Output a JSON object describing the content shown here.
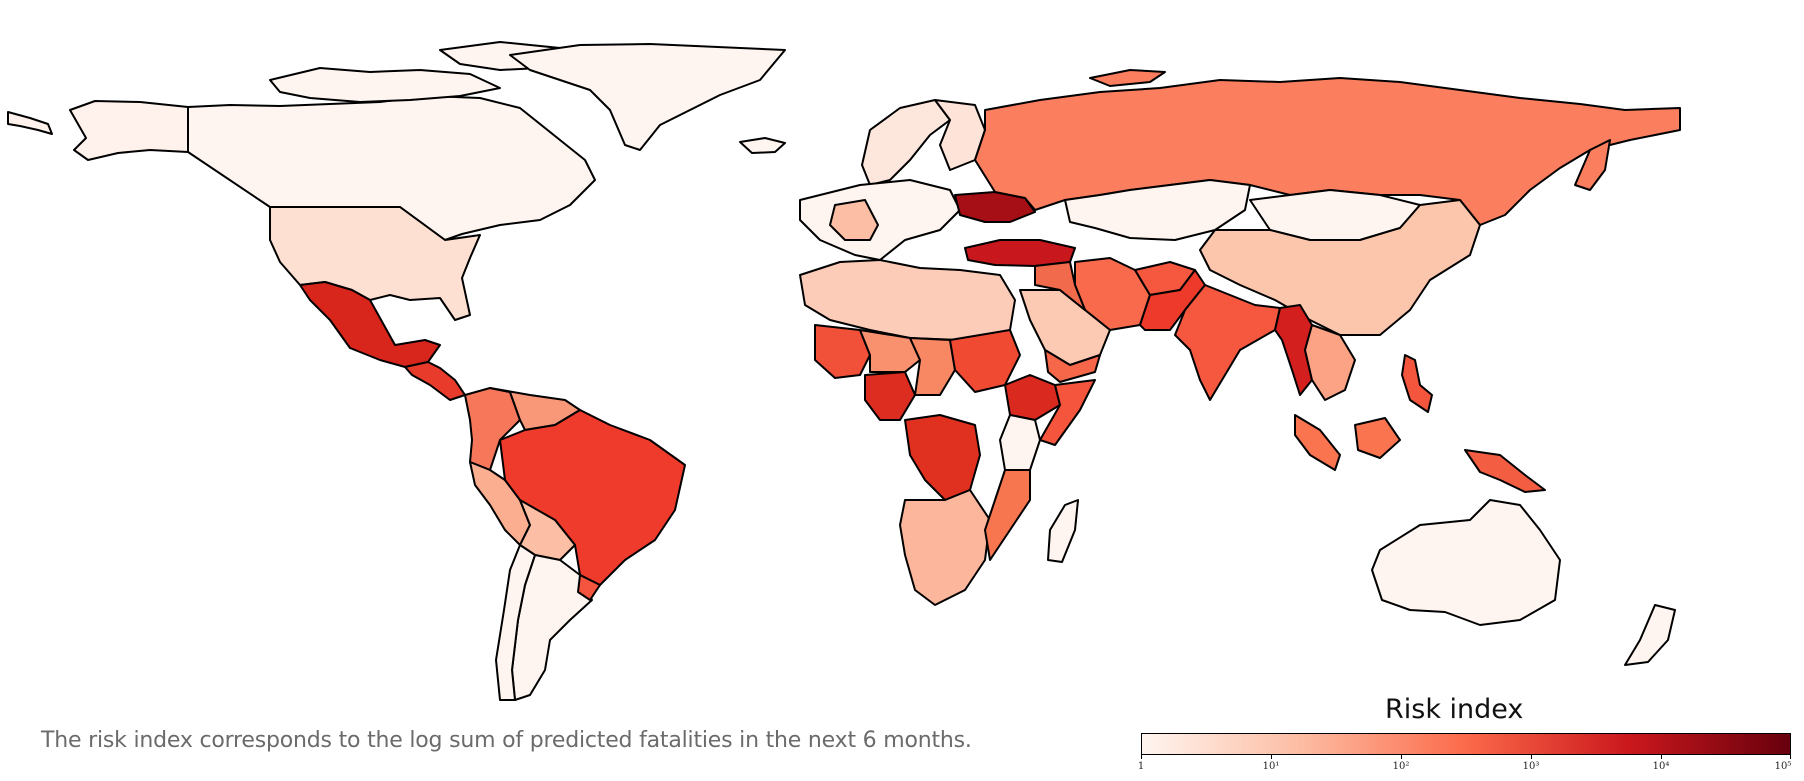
{
  "caption": "The risk index corresponds to the log sum of predicted fatalities in the next 6 months.",
  "legend": {
    "title": "Risk index",
    "ticks": [
      "1",
      "10¹",
      "10²",
      "10³",
      "10⁴",
      "10⁵"
    ],
    "scale": "log",
    "colors": [
      "#fff5f0",
      "#fcbba1",
      "#fb6a4a",
      "#cb181d",
      "#67000d"
    ]
  },
  "countries": [
    {
      "name": "Alaska",
      "color": "#fff1eb"
    },
    {
      "name": "Canada",
      "color": "#fff5f0"
    },
    {
      "name": "Greenland",
      "color": "#fff5f0"
    },
    {
      "name": "United States",
      "color": "#fde0d2"
    },
    {
      "name": "Mexico",
      "color": "#d9261c"
    },
    {
      "name": "Central America",
      "color": "#e83b2b"
    },
    {
      "name": "Colombia",
      "color": "#f7775a"
    },
    {
      "name": "Venezuela",
      "color": "#f99878"
    },
    {
      "name": "Peru",
      "color": "#fcae91"
    },
    {
      "name": "Brazil",
      "color": "#ef3b2c"
    },
    {
      "name": "Bolivia",
      "color": "#fcbea5"
    },
    {
      "name": "Argentina",
      "color": "#fff5f0"
    },
    {
      "name": "Chile",
      "color": "#fff5f0"
    },
    {
      "name": "Uruguay",
      "color": "#f5553e"
    },
    {
      "name": "Iceland",
      "color": "#fff5f0"
    },
    {
      "name": "Scandinavia",
      "color": "#fde6dc"
    },
    {
      "name": "Finland",
      "color": "#fde3d8"
    },
    {
      "name": "Western Europe",
      "color": "#fff5f0"
    },
    {
      "name": "France",
      "color": "#fcbfa6"
    },
    {
      "name": "Ukraine",
      "color": "#a50f15"
    },
    {
      "name": "Turkey",
      "color": "#c9181d"
    },
    {
      "name": "Russia",
      "color": "#fb7e5e"
    },
    {
      "name": "Kazakhstan",
      "color": "#fff5f0"
    },
    {
      "name": "Mongolia",
      "color": "#fff5f0"
    },
    {
      "name": "China",
      "color": "#fcc6ad"
    },
    {
      "name": "Iran",
      "color": "#f96a4c"
    },
    {
      "name": "Afghanistan",
      "color": "#f6583f"
    },
    {
      "name": "Pakistan",
      "color": "#ee3a2b"
    },
    {
      "name": "India",
      "color": "#f5583e"
    },
    {
      "name": "Myanmar",
      "color": "#d3201f"
    },
    {
      "name": "Southeast Asia",
      "color": "#fca285"
    },
    {
      "name": "Indonesia",
      "color": "#f9744f"
    },
    {
      "name": "Philippines",
      "color": "#f4563d"
    },
    {
      "name": "Papua New Guinea",
      "color": "#f35d42"
    },
    {
      "name": "Saudi Arabia",
      "color": "#fcc9b3"
    },
    {
      "name": "Yemen",
      "color": "#f6674a"
    },
    {
      "name": "Iraq/Syria",
      "color": "#f06a4b"
    },
    {
      "name": "North Africa",
      "color": "#fdccb8"
    },
    {
      "name": "Mali",
      "color": "#f25139"
    },
    {
      "name": "Niger",
      "color": "#f9916f"
    },
    {
      "name": "Nigeria",
      "color": "#dd2c20"
    },
    {
      "name": "Chad",
      "color": "#f88764"
    },
    {
      "name": "Sudan",
      "color": "#f04a33"
    },
    {
      "name": "Ethiopia",
      "color": "#da2a1f"
    },
    {
      "name": "Somalia",
      "color": "#f4553c"
    },
    {
      "name": "DR Congo",
      "color": "#e0301f"
    },
    {
      "name": "Kenya",
      "color": "#fff5f0"
    },
    {
      "name": "Southern Africa",
      "color": "#fcb69c"
    },
    {
      "name": "Mozambique",
      "color": "#f7754f"
    },
    {
      "name": "Madagascar",
      "color": "#fff5f0"
    },
    {
      "name": "Australia",
      "color": "#fff5f0"
    },
    {
      "name": "New Zealand",
      "color": "#fff5f0"
    }
  ]
}
